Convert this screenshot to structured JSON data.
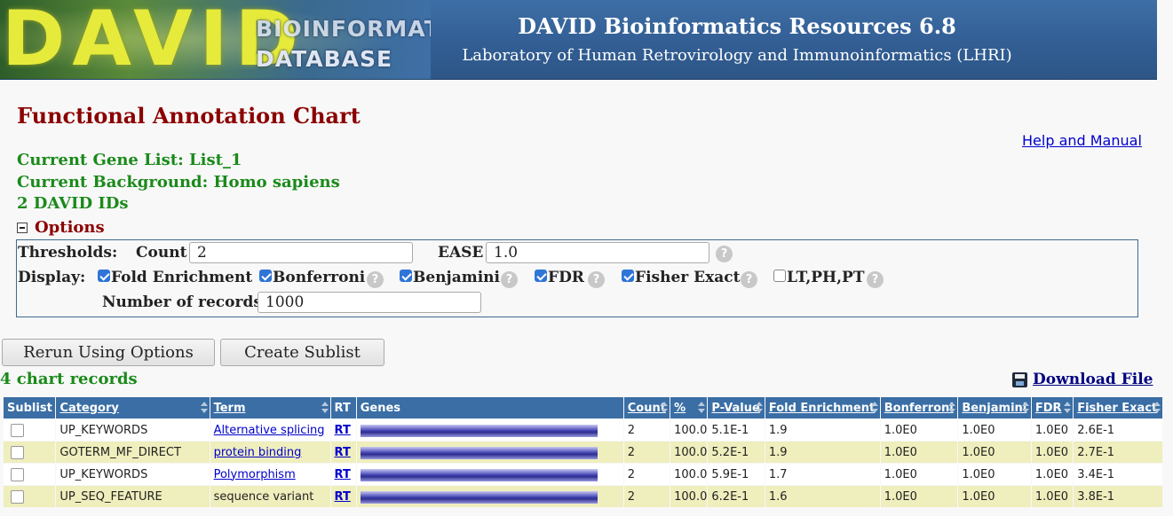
{
  "banner": {
    "logo_letters": "DAVID",
    "logo_line1": "BIOINFORMATICS",
    "logo_line2": "DATABASE",
    "title": "DAVID Bioinformatics Resources 6.8",
    "subtitle": "Laboratory of Human Retrovirology and Immunoinformatics (LHRI)"
  },
  "page": {
    "title": "Functional Annotation Chart",
    "help_link": "Help and Manual",
    "gene_list": "Current Gene List: List_1",
    "background": "Current Background: Homo sapiens",
    "david_ids": "2 DAVID IDs"
  },
  "options": {
    "toggle_label": "Options",
    "thresholds_label": "Thresholds:",
    "count_label": "Count",
    "count_value": "2",
    "ease_label": "EASE",
    "ease_value": "1.0",
    "display_label": "Display:",
    "display_items": [
      {
        "label": "Fold Enrichment",
        "checked": true
      },
      {
        "label": "Bonferroni",
        "checked": true
      },
      {
        "label": "Benjamini",
        "checked": true
      },
      {
        "label": "FDR",
        "checked": true
      },
      {
        "label": "Fisher Exact",
        "checked": true
      },
      {
        "label": "LT,PH,PT",
        "checked": false
      }
    ],
    "records_label": "Number of records",
    "records_value": "1000",
    "help_glyph": "?"
  },
  "buttons": {
    "rerun": "Rerun Using Options",
    "sublist": "Create Sublist"
  },
  "results": {
    "count_text": "4 chart records",
    "download": "Download File"
  },
  "table": {
    "headers": {
      "sublist": "Sublist",
      "category": "Category",
      "term": "Term",
      "rt": "RT",
      "genes": "Genes",
      "count": "Count",
      "percent": "%",
      "pvalue": "P-Value",
      "fold": "Fold Enrichment",
      "bonferroni": "Bonferroni",
      "benjamini": "Benjamini",
      "fdr": "FDR",
      "fisher": "Fisher Exact"
    },
    "rows": [
      {
        "category": "UP_KEYWORDS",
        "term": "Alternative splicing",
        "term_link": true,
        "rt": "RT",
        "count": "2",
        "percent": "100.0",
        "pvalue": "5.1E-1",
        "fold": "1.9",
        "bonferroni": "1.0E0",
        "benjamini": "1.0E0",
        "fdr": "1.0E0",
        "fisher": "2.6E-1"
      },
      {
        "category": "GOTERM_MF_DIRECT",
        "term": "protein binding",
        "term_link": true,
        "rt": "RT",
        "count": "2",
        "percent": "100.0",
        "pvalue": "5.2E-1",
        "fold": "1.9",
        "bonferroni": "1.0E0",
        "benjamini": "1.0E0",
        "fdr": "1.0E0",
        "fisher": "2.7E-1"
      },
      {
        "category": "UP_KEYWORDS",
        "term": "Polymorphism",
        "term_link": true,
        "rt": "RT",
        "count": "2",
        "percent": "100.0",
        "pvalue": "5.9E-1",
        "fold": "1.7",
        "bonferroni": "1.0E0",
        "benjamini": "1.0E0",
        "fdr": "1.0E0",
        "fisher": "3.4E-1"
      },
      {
        "category": "UP_SEQ_FEATURE",
        "term": "sequence variant",
        "term_link": false,
        "rt": "RT",
        "count": "2",
        "percent": "100.0",
        "pvalue": "6.2E-1",
        "fold": "1.6",
        "bonferroni": "1.0E0",
        "benjamini": "1.0E0",
        "fdr": "1.0E0",
        "fisher": "3.8E-1"
      }
    ]
  }
}
